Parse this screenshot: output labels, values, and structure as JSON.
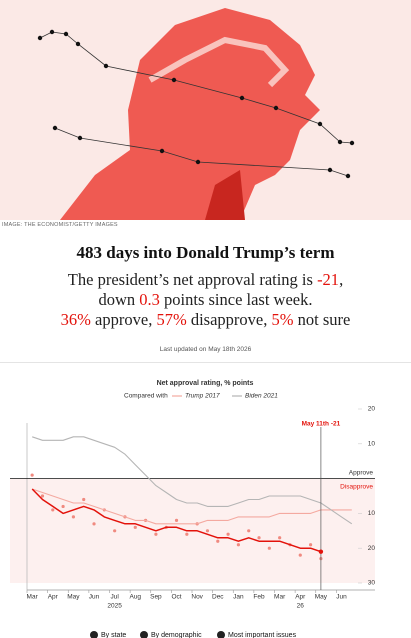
{
  "image_credit": "IMAGE: THE ECONOMIST/GETTY IMAGES",
  "headline": "483 days into Donald Trump’s term",
  "summary": [
    [
      {
        "text": "The president’s net approval rating is "
      },
      {
        "text": "-21",
        "color": "#e3120b"
      },
      {
        "text": ","
      }
    ],
    [
      {
        "text": "down "
      },
      {
        "text": "0.3",
        "color": "#e3120b"
      },
      {
        "text": " points since last week."
      }
    ],
    [
      {
        "text": "36%",
        "color": "#e3120b"
      },
      {
        "text": " approve, "
      },
      {
        "text": "57%",
        "color": "#e3120b"
      },
      {
        "text": " disapprove, "
      },
      {
        "text": "5%",
        "color": "#e3120b"
      },
      {
        "text": " not sure"
      }
    ]
  ],
  "updated": "Last updated on May 18th 2026",
  "chart_data": {
    "type": "line",
    "title": "Net approval rating, % points",
    "legend_prefix": "Compared with",
    "categories": [
      "Mar",
      null,
      "Apr",
      null,
      "May",
      null,
      "Jun",
      null,
      "Jul",
      null,
      "Aug",
      null,
      "Sep",
      null,
      "Oct",
      null,
      "Nov",
      null,
      "Dec",
      null,
      "Jan",
      null,
      "Feb",
      null,
      "Mar",
      null,
      "Apr",
      null,
      "May",
      null,
      "Jun",
      null
    ],
    "year_categories": [
      null,
      null,
      null,
      null,
      null,
      null,
      null,
      null,
      "2025",
      null,
      null,
      null,
      null,
      null,
      null,
      null,
      null,
      null,
      null,
      null,
      null,
      null,
      null,
      null,
      null,
      null,
      "26",
      null,
      null,
      null,
      null,
      null
    ],
    "series": [
      {
        "type": "scatter",
        "color": "#f08a80",
        "values": [
          1,
          -5,
          -9,
          -8,
          -11,
          -6,
          -13,
          -9,
          -15,
          -11,
          -14,
          -12,
          -16,
          -14,
          -12,
          -16,
          -13,
          -15,
          -18,
          -16,
          -19,
          -15,
          -17,
          -20,
          -17,
          -19,
          -22,
          -19,
          -23,
          null,
          null,
          null
        ]
      },
      {
        "name": "Trump 2017",
        "color": "#f4a9a0",
        "values": [
          -3,
          -4,
          -5,
          -6,
          -7,
          -7,
          -8,
          -9,
          -10,
          -11,
          -12,
          -12,
          -13,
          -13,
          -13,
          -13,
          -13,
          -12,
          -12,
          -12,
          -11,
          -11,
          -11,
          -11,
          -10,
          -10,
          -10,
          -10,
          -9,
          -9,
          -9,
          -9
        ]
      },
      {
        "name": "Biden 2021",
        "color": "#b5b5b5",
        "values": [
          12,
          11,
          11,
          11,
          12,
          12,
          11,
          10,
          9,
          7,
          4,
          1,
          -2,
          -4,
          -6,
          -7,
          -7,
          -8,
          -8,
          -8,
          -7,
          -6,
          -6,
          -5,
          -5,
          -5,
          -5,
          -6,
          -7,
          -9,
          -11,
          -13
        ]
      },
      {
        "color": "#e3120b",
        "values": [
          -3,
          -6,
          -8,
          -10,
          -9,
          -8,
          -9,
          -11,
          -12,
          -13,
          -13,
          -14,
          -15,
          -14,
          -14,
          -15,
          -15,
          -16,
          -17,
          -17,
          -18,
          -17,
          -18,
          -18,
          -18,
          -19,
          -20,
          -20,
          -21,
          null,
          null,
          null
        ]
      }
    ],
    "ylim": [
      -30,
      20
    ],
    "yticks": [
      20,
      10,
      {
        "value": -10,
        "label": "10"
      },
      {
        "value": -20,
        "label": "20"
      },
      {
        "value": -30,
        "label": "30"
      }
    ],
    "grid": false,
    "zero_line": {
      "value": 0,
      "above_label": "Approve",
      "below_label": "Disapprove"
    },
    "annotation": "May 11th -21"
  },
  "buttons": [
    "By state",
    "By demographic",
    "Most important issues"
  ]
}
